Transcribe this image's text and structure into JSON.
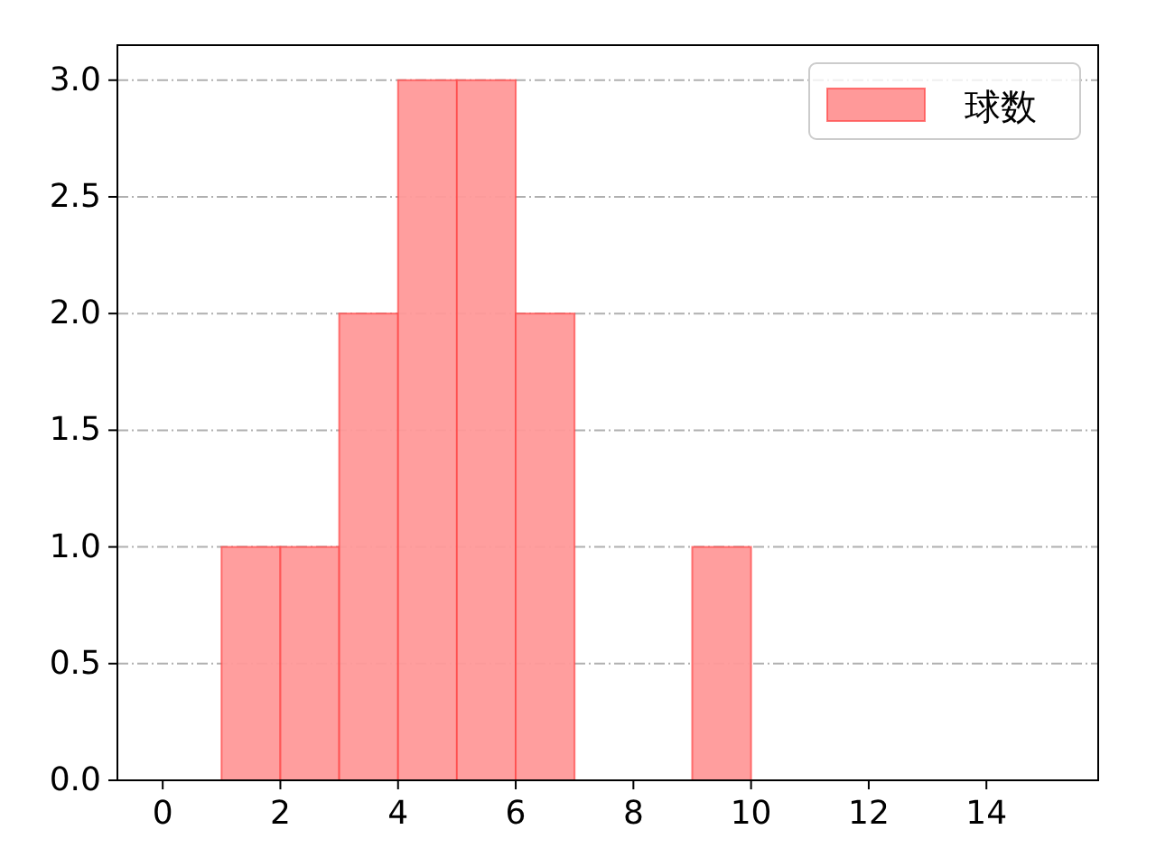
{
  "chart_data": {
    "type": "histogram",
    "bins": [
      1,
      2,
      3,
      4,
      5,
      6,
      7,
      8,
      9,
      10
    ],
    "series": [
      {
        "name": "球数",
        "color": "#ff9999",
        "values": [
          1,
          1,
          2,
          3,
          3,
          2,
          0,
          0,
          1
        ]
      }
    ],
    "xlim": [
      -0.77,
      15.9
    ],
    "xticks": [
      0,
      2,
      4,
      6,
      8,
      10,
      12,
      14
    ],
    "ylim": [
      0,
      3.15
    ],
    "yticks": [
      {
        "value": 0,
        "label": "0.0"
      },
      {
        "value": 0.5,
        "label": "0.5"
      },
      {
        "value": 1,
        "label": "1.0"
      },
      {
        "value": 1.5,
        "label": "1.5"
      },
      {
        "value": 2,
        "label": "2.0"
      },
      {
        "value": 2.5,
        "label": "2.5"
      },
      {
        "value": 3,
        "label": "3.0"
      }
    ],
    "grid": "y",
    "legend": "top right"
  }
}
